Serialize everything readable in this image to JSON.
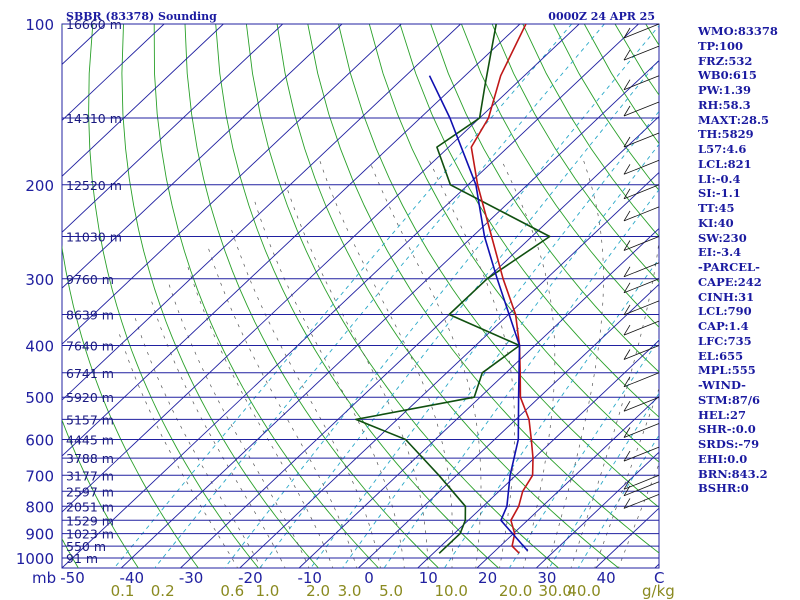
{
  "header": {
    "station": "SBBR (83378) Sounding",
    "time": "0000Z 24 APR 25"
  },
  "indices": [
    "WMO:83378",
    "TP:100",
    "FRZ:532",
    "WB0:615",
    "PW:1.39",
    "RH:58.3",
    "MAXT:28.5",
    "TH:5829",
    "L57:4.6",
    "LCL:821",
    "LI:-0.4",
    "SI:-1.1",
    "TT:45",
    "KI:40",
    "SW:230",
    "EI:-3.4",
    "-PARCEL-",
    "CAPE:242",
    "CINH:31",
    "LCL:790",
    "CAP:1.4",
    "LFC:735",
    "EL:655",
    "MPL:555",
    "-WIND-",
    "STM:87/6",
    "HEL:27",
    "SHR-:0.0",
    "SRDS:-79",
    "EHI:0.0",
    "BRN:843.2",
    "BSHR:0"
  ],
  "colors": {
    "isobar": "#2020a0",
    "height_label": "#1a1a80",
    "isotherm": "#2020a0",
    "dry_adiabat": "#2aa02a",
    "mixing_ratio": "#2aa8c8",
    "moist_adiabat": "#555555",
    "temperature": "#c01818",
    "dewpoint": "#105010",
    "parcel": "#1010b0",
    "axis_text": "#2020a0",
    "mixing_text": "#8a8a20",
    "side_text": "#1a1aa0"
  },
  "chart_data": {
    "type": "skew-t",
    "pressure_unit_label": "mb",
    "mixing_unit_label": "g/kg",
    "pressure_ticks": [
      100,
      200,
      300,
      400,
      500,
      600,
      700,
      800,
      900,
      1000
    ],
    "isobars": [
      {
        "p": 100,
        "h": "16660 m"
      },
      {
        "p": 150,
        "h": "14310 m"
      },
      {
        "p": 200,
        "h": "12520 m"
      },
      {
        "p": 250,
        "h": "11030 m"
      },
      {
        "p": 300,
        "h": "9760 m"
      },
      {
        "p": 350,
        "h": "8639 m"
      },
      {
        "p": 400,
        "h": "7640 m"
      },
      {
        "p": 450,
        "h": "6741 m"
      },
      {
        "p": 500,
        "h": "5920 m"
      },
      {
        "p": 550,
        "h": "5157 m"
      },
      {
        "p": 600,
        "h": "4445 m"
      },
      {
        "p": 650,
        "h": "3788 m"
      },
      {
        "p": 700,
        "h": "3177 m"
      },
      {
        "p": 750,
        "h": "2597 m"
      },
      {
        "p": 800,
        "h": "2051 m"
      },
      {
        "p": 850,
        "h": "1529 m"
      },
      {
        "p": 900,
        "h": "1023 m"
      },
      {
        "p": 950,
        "h": "550 m"
      },
      {
        "p": 1000,
        "h": "91 m"
      }
    ],
    "temp_ticks": [
      -50,
      -40,
      -30,
      -20,
      -10,
      0,
      10,
      20,
      30,
      40
    ],
    "temp_ticks_labels": [
      "-50",
      "-40",
      "-30",
      "-20",
      "-10",
      "0",
      "10",
      "20",
      "30",
      "40"
    ],
    "mixing_ratio_ticks": [
      "0.1",
      "0.2",
      "0.6",
      "1.0",
      "2.0",
      "3.0",
      "5.0",
      "10.0",
      "20.0",
      "30.0",
      "40.0"
    ],
    "mixing_ratio_values": [
      0.1,
      0.2,
      0.6,
      1.0,
      2.0,
      3.0,
      5.0,
      10.0,
      20.0,
      30.0,
      40.0
    ],
    "x_end_label": "C",
    "temperature": [
      [
        980,
        24.5
      ],
      [
        950,
        22
      ],
      [
        900,
        20.2
      ],
      [
        850,
        17.2
      ],
      [
        800,
        16
      ],
      [
        750,
        14
      ],
      [
        700,
        12.8
      ],
      [
        650,
        9.8
      ],
      [
        600,
        6.2
      ],
      [
        550,
        2.2
      ],
      [
        500,
        -3.2
      ],
      [
        450,
        -7.6
      ],
      [
        400,
        -12.6
      ],
      [
        350,
        -18.8
      ],
      [
        300,
        -27.3
      ],
      [
        250,
        -36.8
      ],
      [
        200,
        -48.4
      ],
      [
        170,
        -56.2
      ],
      [
        150,
        -58.5
      ],
      [
        125,
        -64
      ],
      [
        100,
        -69
      ]
    ],
    "dewpoint": [
      [
        980,
        11
      ],
      [
        900,
        11
      ],
      [
        850,
        9.5
      ],
      [
        800,
        7
      ],
      [
        700,
        -3
      ],
      [
        600,
        -15
      ],
      [
        550,
        -27
      ],
      [
        500,
        -11
      ],
      [
        450,
        -14
      ],
      [
        400,
        -12.6
      ],
      [
        350,
        -30
      ],
      [
        300,
        -30
      ],
      [
        250,
        -27
      ],
      [
        200,
        -53
      ],
      [
        170,
        -62
      ],
      [
        150,
        -60
      ],
      [
        130,
        -65
      ],
      [
        100,
        -74
      ]
    ],
    "parcel": [
      [
        970,
        25.5
      ],
      [
        850,
        15.5
      ],
      [
        800,
        14
      ],
      [
        700,
        9
      ],
      [
        600,
        4
      ],
      [
        500,
        -3.5
      ],
      [
        400,
        -12.6
      ],
      [
        300,
        -28.3
      ],
      [
        250,
        -38
      ],
      [
        200,
        -48.7
      ],
      [
        150,
        -65
      ],
      [
        125,
        -76
      ]
    ]
  }
}
